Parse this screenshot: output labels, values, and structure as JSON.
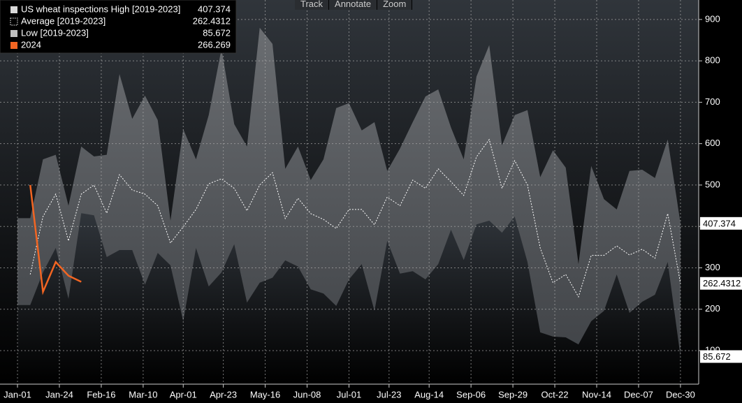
{
  "toolbar": [
    "Track",
    "Annotate",
    "Zoom"
  ],
  "chart_data": {
    "type": "line",
    "x": [
      0,
      7,
      14,
      21,
      28,
      35,
      42,
      49,
      56,
      63,
      70,
      77,
      84,
      91,
      98,
      105,
      112,
      119,
      126,
      133,
      140,
      147,
      154,
      161,
      168,
      175,
      182,
      189,
      196,
      203,
      210,
      217,
      224,
      231,
      238,
      245,
      252,
      259,
      266,
      273,
      280,
      287,
      294,
      301,
      308,
      315,
      322,
      329,
      336,
      343,
      350,
      357,
      364
    ],
    "xlim": [
      -9.6,
      374
    ],
    "xticks": [
      {
        "value": 0,
        "label": "Jan-01"
      },
      {
        "value": 23,
        "label": "Jan-24"
      },
      {
        "value": 46,
        "label": "Feb-16"
      },
      {
        "value": 69,
        "label": "Mar-10"
      },
      {
        "value": 91,
        "label": "Apr-01"
      },
      {
        "value": 113,
        "label": "Apr-23"
      },
      {
        "value": 136,
        "label": "May-16"
      },
      {
        "value": 159,
        "label": "Jun-08"
      },
      {
        "value": 182,
        "label": "Jul-01"
      },
      {
        "value": 204,
        "label": "Jul-23"
      },
      {
        "value": 226,
        "label": "Aug-14"
      },
      {
        "value": 249,
        "label": "Sep-06"
      },
      {
        "value": 272,
        "label": "Sep-29"
      },
      {
        "value": 295,
        "label": "Oct-22"
      },
      {
        "value": 318,
        "label": "Nov-14"
      },
      {
        "value": 341,
        "label": "Dec-07"
      },
      {
        "value": 364,
        "label": "Dec-30"
      }
    ],
    "ylim": [
      19,
      947
    ],
    "yticks": [
      100,
      200,
      300,
      400,
      500,
      600,
      700,
      800,
      900
    ],
    "grid": true,
    "legend": "top-left",
    "series": [
      {
        "name": "US wheat inspections High [2019-2023]",
        "color": "#595c60",
        "style": "band-high",
        "values": [
          420,
          420,
          562,
          573,
          450,
          593,
          569,
          573,
          768,
          660,
          716,
          657,
          414,
          635,
          562,
          669,
          829,
          647,
          593,
          880,
          841,
          539,
          593,
          512,
          562,
          686,
          698,
          632,
          652,
          534,
          588,
          652,
          714,
          731,
          639,
          562,
          762,
          838,
          596,
          669,
          681,
          519,
          584,
          542,
          309,
          546,
          466,
          441,
          534,
          537,
          517,
          610,
          407.374
        ]
      },
      {
        "name": "Average  [2019-2023]",
        "color": "#ffffff",
        "style": "dotted",
        "values": [
          null,
          284,
          424,
          478,
          365,
          478,
          500,
          432,
          525,
          488,
          478,
          450,
          360,
          399,
          441,
          503,
          515,
          492,
          438,
          500,
          530,
          419,
          468,
          431,
          417,
          395,
          441,
          441,
          404,
          471,
          450,
          512,
          492,
          539,
          508,
          475,
          568,
          610,
          492,
          559,
          500,
          348,
          264,
          284,
          230,
          330,
          330,
          353,
          331,
          345,
          323,
          431,
          262.4312
        ]
      },
      {
        "name": "Low  [2019-2023]",
        "color": "#bfbfbf",
        "style": "band-low",
        "values": [
          210,
          210,
          289,
          348,
          225,
          432,
          427,
          326,
          343,
          343,
          259,
          336,
          306,
          171,
          348,
          255,
          289,
          357,
          216,
          264,
          276,
          318,
          303,
          248,
          238,
          208,
          272,
          309,
          196,
          365,
          286,
          292,
          272,
          309,
          392,
          319,
          405,
          414,
          385,
          424,
          314,
          144,
          134,
          132,
          115,
          171,
          196,
          284,
          191,
          218,
          235,
          314,
          85.672
        ]
      },
      {
        "name": "2024",
        "color": "#f26522",
        "style": "solid",
        "values": [
          null,
          500,
          242,
          314,
          281,
          266.269,
          null,
          null,
          null,
          null,
          null,
          null,
          null,
          null,
          null,
          null,
          null,
          null,
          null,
          null,
          null,
          null,
          null,
          null,
          null,
          null,
          null,
          null,
          null,
          null,
          null,
          null,
          null,
          null,
          null,
          null,
          null,
          null,
          null,
          null,
          null,
          null,
          null,
          null,
          null,
          null,
          null,
          null,
          null,
          null,
          null,
          null,
          null
        ]
      }
    ]
  }
}
